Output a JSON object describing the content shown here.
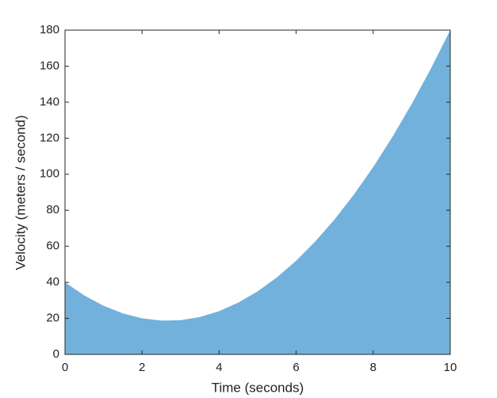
{
  "chart_data": {
    "type": "area",
    "xlabel": "Time (seconds)",
    "ylabel": "Velocity (meters / second)",
    "x": [
      0,
      0.5,
      1,
      1.5,
      2,
      2.5,
      3,
      3.5,
      4,
      4.5,
      5,
      5.5,
      6,
      6.5,
      7,
      7.5,
      8,
      8.5,
      9,
      9.5,
      10
    ],
    "values": [
      40,
      32.75,
      27,
      22.75,
      20,
      18.75,
      19,
      20.75,
      24,
      28.75,
      35,
      42.75,
      52,
      62.75,
      75,
      88.75,
      104,
      120.75,
      139,
      158.75,
      180
    ],
    "color": "#72b1db",
    "xlim": [
      0,
      10
    ],
    "xticks": [
      0,
      2,
      4,
      6,
      8,
      10
    ],
    "ylim": [
      0,
      180
    ],
    "yticks": [
      0,
      20,
      40,
      60,
      80,
      100,
      120,
      140,
      160,
      180
    ]
  }
}
